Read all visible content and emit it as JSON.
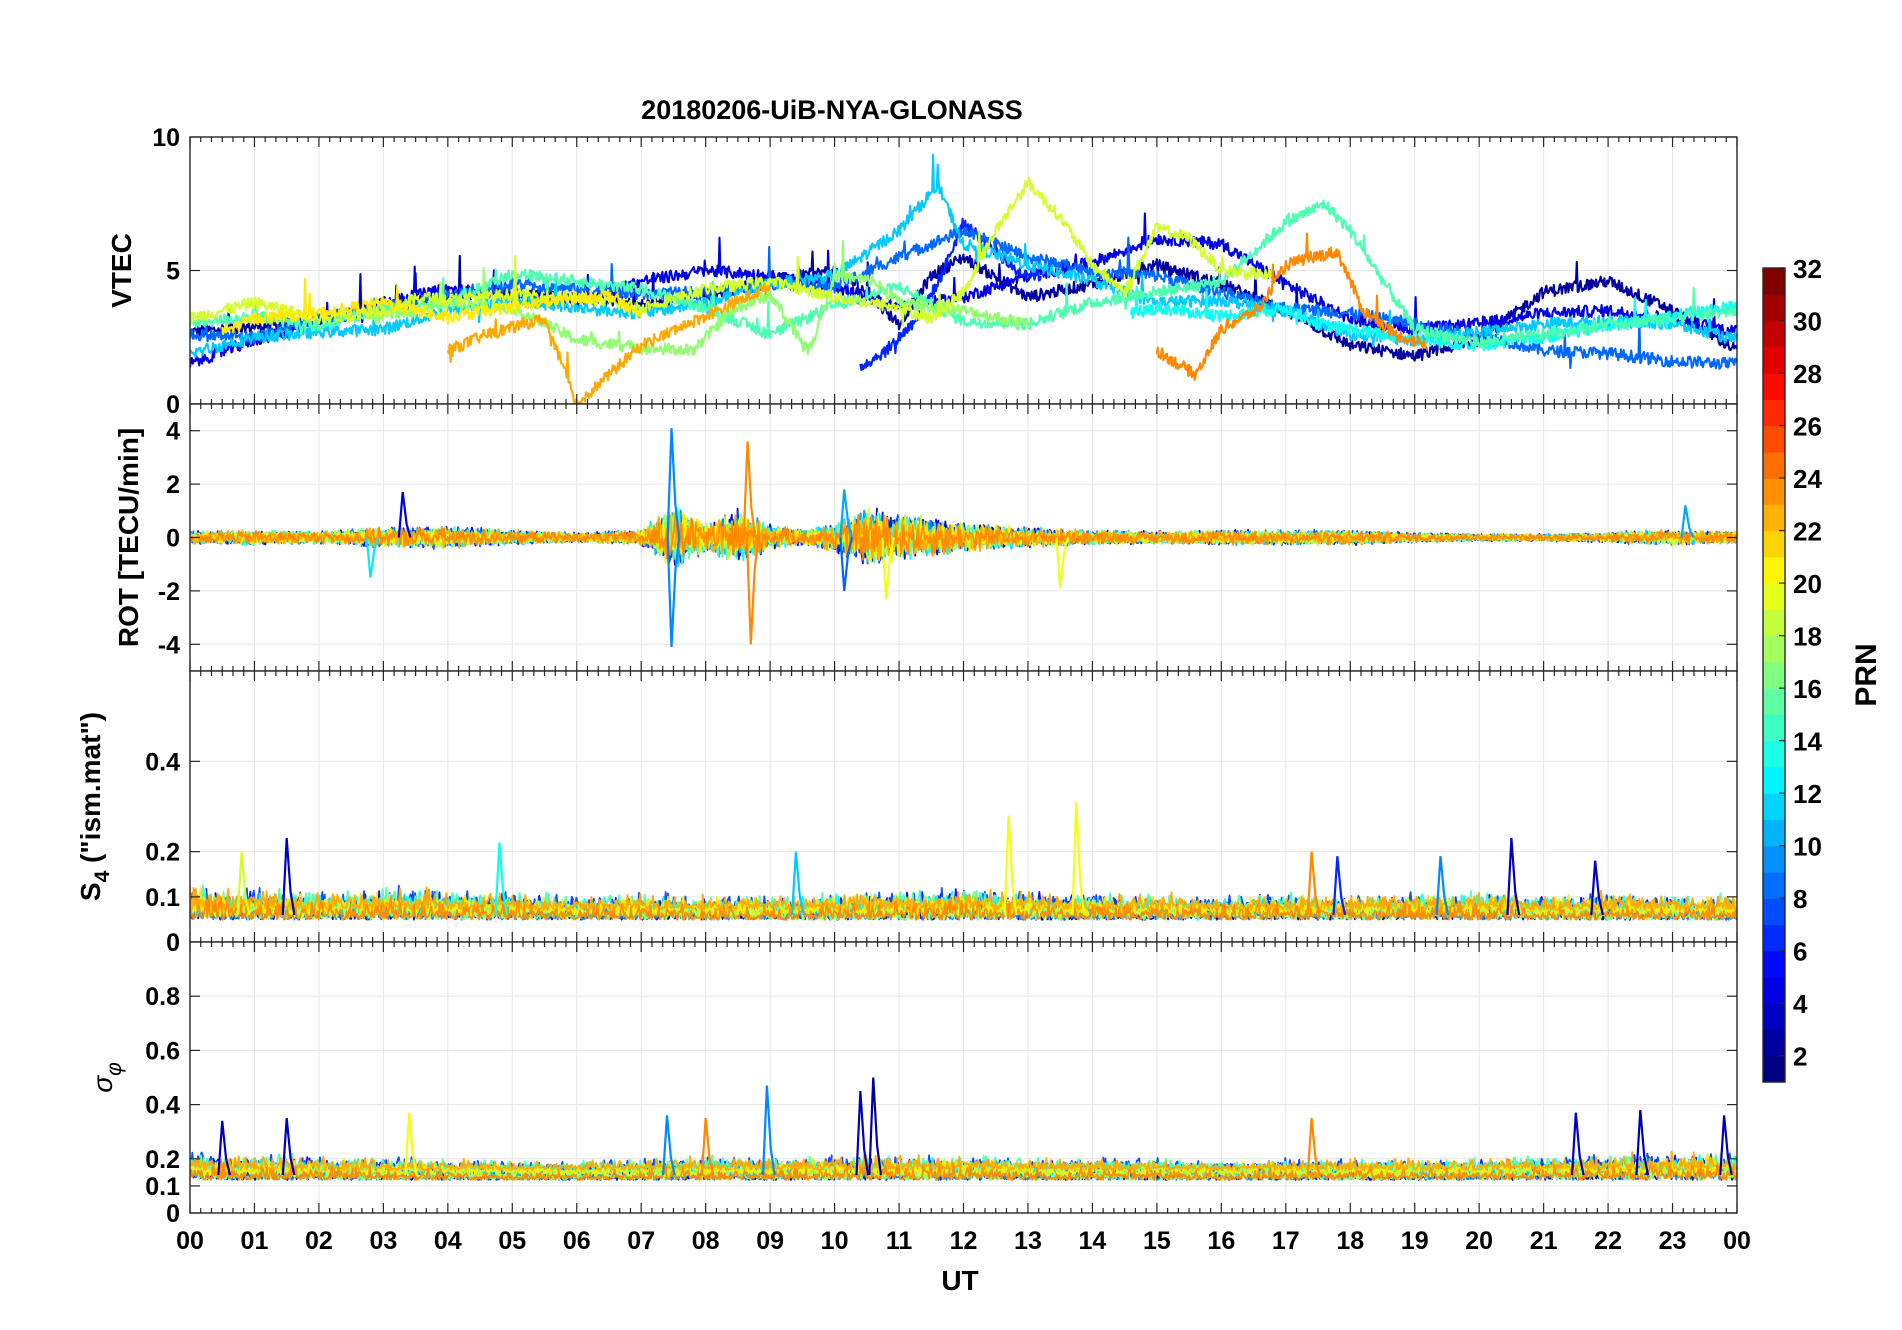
{
  "chart_data": {
    "title": "20180206-UiB-NYA-GLONASS",
    "type": "line",
    "x_axis": {
      "label": "UT",
      "range": [
        0,
        24
      ],
      "tick_labels": [
        "00",
        "01",
        "02",
        "03",
        "04",
        "05",
        "06",
        "07",
        "08",
        "09",
        "10",
        "11",
        "12",
        "13",
        "14",
        "15",
        "16",
        "17",
        "18",
        "19",
        "20",
        "21",
        "22",
        "23",
        "00"
      ]
    },
    "grid": true,
    "colorbar": {
      "label": "PRN",
      "range": [
        1,
        32
      ],
      "tick_labels": [
        "2",
        "4",
        "6",
        "8",
        "10",
        "12",
        "14",
        "16",
        "18",
        "20",
        "22",
        "24",
        "26",
        "28",
        "30",
        "32"
      ],
      "colormap": "jet",
      "placement": "right"
    },
    "panels": [
      {
        "ylabel": "VTEC",
        "ylim": [
          0,
          10
        ],
        "yticks": [
          "0",
          "5",
          "10"
        ],
        "series": [
          {
            "prn": 2,
            "x": [
              0,
              1,
              2,
              3,
              4,
              5,
              6,
              7,
              8,
              9,
              10,
              10.5,
              11,
              11.5,
              12,
              13,
              14,
              15,
              16,
              17,
              18,
              19,
              20,
              21,
              22,
              23,
              24
            ],
            "y": [
              2.7,
              2.9,
              3.1,
              3.6,
              4.0,
              4.2,
              4.0,
              3.7,
              4.1,
              4.6,
              5.0,
              4.2,
              3.0,
              4.8,
              5.5,
              4.0,
              4.5,
              5.2,
              4.5,
              3.5,
              2.2,
              1.8,
              2.4,
              4.2,
              4.6,
              3.5,
              2.0
            ]
          },
          {
            "prn": 4,
            "x": [
              0,
              1,
              2,
              3,
              4,
              5,
              6,
              7,
              8,
              9,
              10,
              11,
              12,
              13,
              14,
              15,
              16,
              17,
              18,
              19,
              20,
              21,
              22,
              23,
              24
            ],
            "y": [
              1.5,
              2.4,
              3.0,
              3.8,
              4.3,
              4.1,
              3.8,
              4.6,
              5.0,
              4.8,
              4.4,
              3.6,
              4.0,
              4.8,
              5.3,
              6.2,
              6.0,
              4.5,
              3.2,
              2.8,
              3.0,
              3.4,
              3.5,
              3.2,
              2.7
            ]
          },
          {
            "prn": 6,
            "x": [
              10.4,
              10.8,
              11.2,
              11.6,
              12.0,
              12.4,
              12.8,
              13.2
            ],
            "y": [
              1.4,
              2.0,
              3.0,
              4.5,
              6.8,
              6.0,
              5.0,
              4.8
            ]
          },
          {
            "prn": 8,
            "x": [
              0,
              1,
              2,
              3,
              4,
              5,
              6,
              7,
              8,
              9,
              10,
              11,
              12,
              13,
              14,
              15,
              16,
              17,
              18,
              19,
              20,
              21,
              22,
              23,
              24
            ],
            "y": [
              2.6,
              2.5,
              3.2,
              3.6,
              4.0,
              4.5,
              4.3,
              4.1,
              4.2,
              4.5,
              4.4,
              5.5,
              6.5,
              5.5,
              5.0,
              4.8,
              4.2,
              3.6,
              3.4,
              3.0,
              2.6,
              2.0,
              1.9,
              1.6,
              1.5
            ]
          },
          {
            "prn": 11,
            "x": [
              0,
              1,
              2,
              3,
              4,
              5,
              6,
              7,
              8,
              9,
              10,
              11,
              11.6,
              12,
              13,
              14,
              15,
              16,
              17,
              18,
              19,
              20,
              21,
              22,
              23,
              24
            ],
            "y": [
              1.9,
              2.5,
              2.7,
              2.8,
              3.5,
              3.9,
              3.6,
              3.4,
              3.8,
              4.5,
              4.8,
              6.5,
              8.2,
              6.0,
              5.2,
              4.6,
              3.8,
              3.9,
              3.5,
              2.6,
              2.4,
              2.7,
              3.0,
              3.1,
              3.0,
              2.4
            ]
          },
          {
            "prn": 13,
            "x": [
              14.6,
              15,
              16,
              17,
              17.5,
              18,
              19,
              20,
              21,
              22,
              23,
              24
            ],
            "y": [
              3.4,
              3.6,
              3.3,
              3.6,
              3.0,
              2.8,
              2.4,
              2.2,
              2.5,
              2.9,
              3.3,
              3.7
            ]
          },
          {
            "prn": 15,
            "x": [
              0,
              1,
              2,
              3,
              4,
              5,
              6,
              7,
              8,
              9,
              10,
              11,
              12,
              13,
              14,
              15,
              16,
              17,
              17.6,
              18,
              19,
              20,
              21,
              22,
              23,
              24
            ],
            "y": [
              3.0,
              3.3,
              2.9,
              3.6,
              3.8,
              4.9,
              4.6,
              4.3,
              3.6,
              2.6,
              3.7,
              4.4,
              3.1,
              3.0,
              3.8,
              4.2,
              4.6,
              6.8,
              7.5,
              6.5,
              2.8,
              2.3,
              2.6,
              3.0,
              3.2,
              3.5
            ]
          },
          {
            "prn": 17,
            "x": [
              2.8,
              4,
              5,
              6,
              7,
              7.8,
              8.4,
              9,
              9.6,
              10,
              10.6,
              11,
              12,
              13
            ],
            "y": [
              3.2,
              3.8,
              3.6,
              2.4,
              2.1,
              2.0,
              3.5,
              4.1,
              2.0,
              4.8,
              4.6,
              3.8,
              3.5,
              3.0
            ]
          },
          {
            "prn": 19,
            "x": [
              0,
              1,
              2,
              3,
              3.6,
              4,
              5,
              6,
              7,
              8,
              9,
              10,
              11,
              11.5,
              12,
              12.5,
              13,
              13.5,
              14,
              14.5,
              15,
              15.5,
              16,
              16.8
            ],
            "y": [
              3.2,
              3.8,
              3.2,
              3.5,
              4.0,
              3.9,
              4.1,
              4.0,
              3.6,
              4.3,
              4.6,
              4.0,
              3.6,
              3.2,
              4.2,
              6.5,
              8.3,
              7.0,
              5.2,
              4.2,
              6.6,
              6.2,
              5.0,
              4.8
            ]
          },
          {
            "prn": 21,
            "x": [
              0.5,
              1,
              2,
              3,
              4,
              4.6,
              5.5,
              6.5,
              7
            ],
            "y": [
              2.7,
              3.2,
              3.4,
              3.8,
              3.2,
              3.5,
              3.8,
              4.1,
              3.3
            ]
          },
          {
            "prn": 23,
            "x": [
              4,
              4.6,
              5.5,
              6,
              7,
              8,
              9
            ],
            "y": [
              2.0,
              2.6,
              3.2,
              0.0,
              2.2,
              3.3,
              4.4
            ]
          },
          {
            "prn": 24,
            "x": [
              15,
              15.6,
              16,
              16.6,
              17,
              17.4,
              17.8,
              18.2,
              18.7,
              19.2
            ],
            "y": [
              2.0,
              1.1,
              2.8,
              3.6,
              5.2,
              5.5,
              5.7,
              3.5,
              2.6,
              2.2
            ]
          }
        ]
      },
      {
        "ylabel": "ROT [TECU/min]",
        "ylim": [
          -5,
          5
        ],
        "yticks": [
          "-4",
          "-2",
          "0",
          "2",
          "4"
        ],
        "activity_profile": {
          "x": [
            0,
            1,
            2,
            3,
            4,
            5,
            6,
            7,
            7.5,
            8,
            8.5,
            9,
            9.5,
            10,
            10.5,
            11,
            11.5,
            12,
            12.5,
            13,
            13.5,
            14,
            15,
            16,
            17,
            18,
            19,
            20,
            21,
            22,
            22.5,
            23,
            24
          ],
          "amplitude": [
            0.25,
            0.3,
            0.25,
            0.4,
            0.45,
            0.3,
            0.2,
            0.3,
            1.3,
            0.6,
            1.1,
            0.5,
            0.3,
            0.6,
            1.2,
            0.9,
            0.8,
            0.6,
            0.5,
            0.4,
            0.35,
            0.3,
            0.25,
            0.3,
            0.3,
            0.3,
            0.2,
            0.15,
            0.15,
            0.2,
            0.3,
            0.3,
            0.25
          ]
        },
        "peaks": [
          {
            "x": 7.47,
            "y": 4.1,
            "prn": 9
          },
          {
            "x": 7.47,
            "y": -4.1,
            "prn": 9
          },
          {
            "x": 8.65,
            "y": 3.6,
            "prn": 24
          },
          {
            "x": 8.7,
            "y": -4.0,
            "prn": 24
          },
          {
            "x": 10.15,
            "y": 1.8,
            "prn": 10
          },
          {
            "x": 10.15,
            "y": -2.0,
            "prn": 8
          },
          {
            "x": 10.8,
            "y": -2.3,
            "prn": 20
          },
          {
            "x": 13.5,
            "y": -1.9,
            "prn": 20
          },
          {
            "x": 3.3,
            "y": 1.7,
            "prn": 4
          },
          {
            "x": 2.8,
            "y": -1.5,
            "prn": 12
          },
          {
            "x": 23.2,
            "y": 1.2,
            "prn": 10
          }
        ]
      },
      {
        "ylabel": "S4 (\"ism.mat\")",
        "ylabel_main": "S",
        "ylabel_sub": "4",
        "ylabel_rest": " (\"ism.mat\")",
        "ylim": [
          0,
          0.6
        ],
        "yticks": [
          "0",
          "0.1",
          "0.2",
          "0.4"
        ],
        "baseline": 0.06,
        "activity_profile": {
          "x": [
            0,
            1,
            2,
            3,
            4,
            5,
            6,
            7,
            8,
            9,
            10,
            11,
            12,
            13,
            14,
            15,
            16,
            17,
            18,
            19,
            20,
            21,
            22,
            23,
            24
          ],
          "amplitude": [
            0.05,
            0.04,
            0.035,
            0.045,
            0.04,
            0.035,
            0.03,
            0.035,
            0.03,
            0.03,
            0.035,
            0.04,
            0.045,
            0.04,
            0.035,
            0.035,
            0.03,
            0.035,
            0.03,
            0.035,
            0.04,
            0.03,
            0.035,
            0.03,
            0.03
          ]
        },
        "peaks": [
          {
            "x": 1.5,
            "y": 0.23,
            "prn": 3
          },
          {
            "x": 0.8,
            "y": 0.2,
            "prn": 19
          },
          {
            "x": 4.8,
            "y": 0.22,
            "prn": 13
          },
          {
            "x": 9.4,
            "y": 0.2,
            "prn": 11
          },
          {
            "x": 12.7,
            "y": 0.28,
            "prn": 20
          },
          {
            "x": 13.75,
            "y": 0.31,
            "prn": 20
          },
          {
            "x": 17.4,
            "y": 0.2,
            "prn": 24
          },
          {
            "x": 17.8,
            "y": 0.19,
            "prn": 6
          },
          {
            "x": 19.4,
            "y": 0.19,
            "prn": 9
          },
          {
            "x": 20.5,
            "y": 0.23,
            "prn": 3
          },
          {
            "x": 21.8,
            "y": 0.18,
            "prn": 3
          }
        ]
      },
      {
        "ylabel": "σφ",
        "ylabel_main": "σ",
        "ylabel_sub": "φ",
        "ylim": [
          0,
          1
        ],
        "yticks": [
          "0",
          "0.1",
          "0.2",
          "0.4",
          "0.6",
          "0.8"
        ],
        "baseline": 0.14,
        "activity_profile": {
          "x": [
            0,
            1,
            2,
            3,
            4,
            5,
            6,
            7,
            8,
            9,
            10,
            11,
            12,
            13,
            14,
            15,
            16,
            17,
            18,
            19,
            20,
            21,
            22,
            23,
            24
          ],
          "amplitude": [
            0.06,
            0.05,
            0.05,
            0.04,
            0.04,
            0.03,
            0.03,
            0.04,
            0.05,
            0.04,
            0.05,
            0.05,
            0.05,
            0.04,
            0.04,
            0.04,
            0.03,
            0.04,
            0.04,
            0.04,
            0.04,
            0.05,
            0.05,
            0.06,
            0.06
          ]
        },
        "peaks": [
          {
            "x": 0.5,
            "y": 0.34,
            "prn": 3
          },
          {
            "x": 1.5,
            "y": 0.35,
            "prn": 3
          },
          {
            "x": 3.4,
            "y": 0.37,
            "prn": 20
          },
          {
            "x": 7.4,
            "y": 0.36,
            "prn": 9
          },
          {
            "x": 8.0,
            "y": 0.35,
            "prn": 24
          },
          {
            "x": 8.95,
            "y": 0.47,
            "prn": 9
          },
          {
            "x": 10.6,
            "y": 0.5,
            "prn": 2
          },
          {
            "x": 10.4,
            "y": 0.45,
            "prn": 3
          },
          {
            "x": 17.4,
            "y": 0.35,
            "prn": 24
          },
          {
            "x": 21.5,
            "y": 0.37,
            "prn": 3
          },
          {
            "x": 22.5,
            "y": 0.38,
            "prn": 3
          },
          {
            "x": 23.8,
            "y": 0.36,
            "prn": 3
          }
        ]
      }
    ]
  }
}
